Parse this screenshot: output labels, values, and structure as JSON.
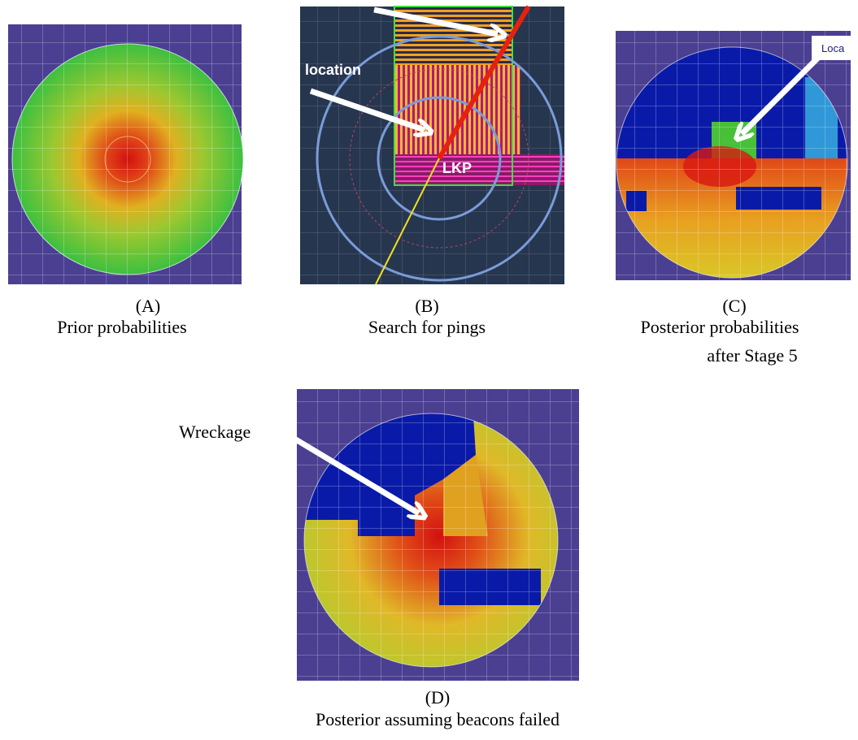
{
  "panels": [
    {
      "label": "(A)",
      "caption": [
        "Prior probabilities"
      ]
    },
    {
      "label": "(B)",
      "caption": [
        "Search for pings"
      ],
      "annotations": [
        "location",
        "LKP"
      ]
    },
    {
      "label": "(C)",
      "caption": [
        "Posterior probabilities",
        "after Stage 5"
      ],
      "annotations": [
        "Loca"
      ]
    },
    {
      "label": "(D)",
      "caption": [
        "Posterior assuming beacons failed"
      ],
      "annotations": [
        "Wreckage"
      ]
    }
  ]
}
